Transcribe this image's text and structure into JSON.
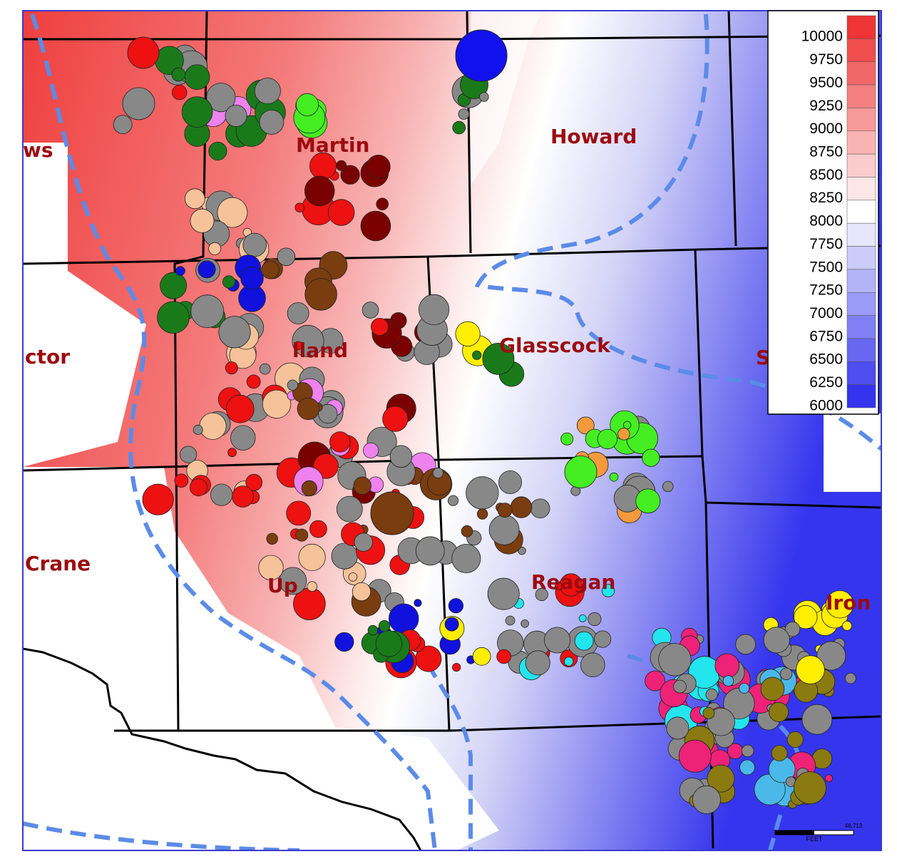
{
  "map": {
    "county_labels": [
      "ws",
      "Martin",
      "Howard",
      "ctor",
      "lland",
      "Glasscock",
      "S",
      "Crane",
      "Up",
      "Reagan",
      "Iron"
    ],
    "legend": {
      "values": [
        10000,
        9750,
        9500,
        9250,
        9000,
        8750,
        8500,
        8250,
        8000,
        7750,
        7500,
        7250,
        7000,
        6750,
        6500,
        6250,
        6000
      ]
    },
    "scale_bar": {
      "label": "FEET",
      "distance": "48,713"
    }
  }
}
